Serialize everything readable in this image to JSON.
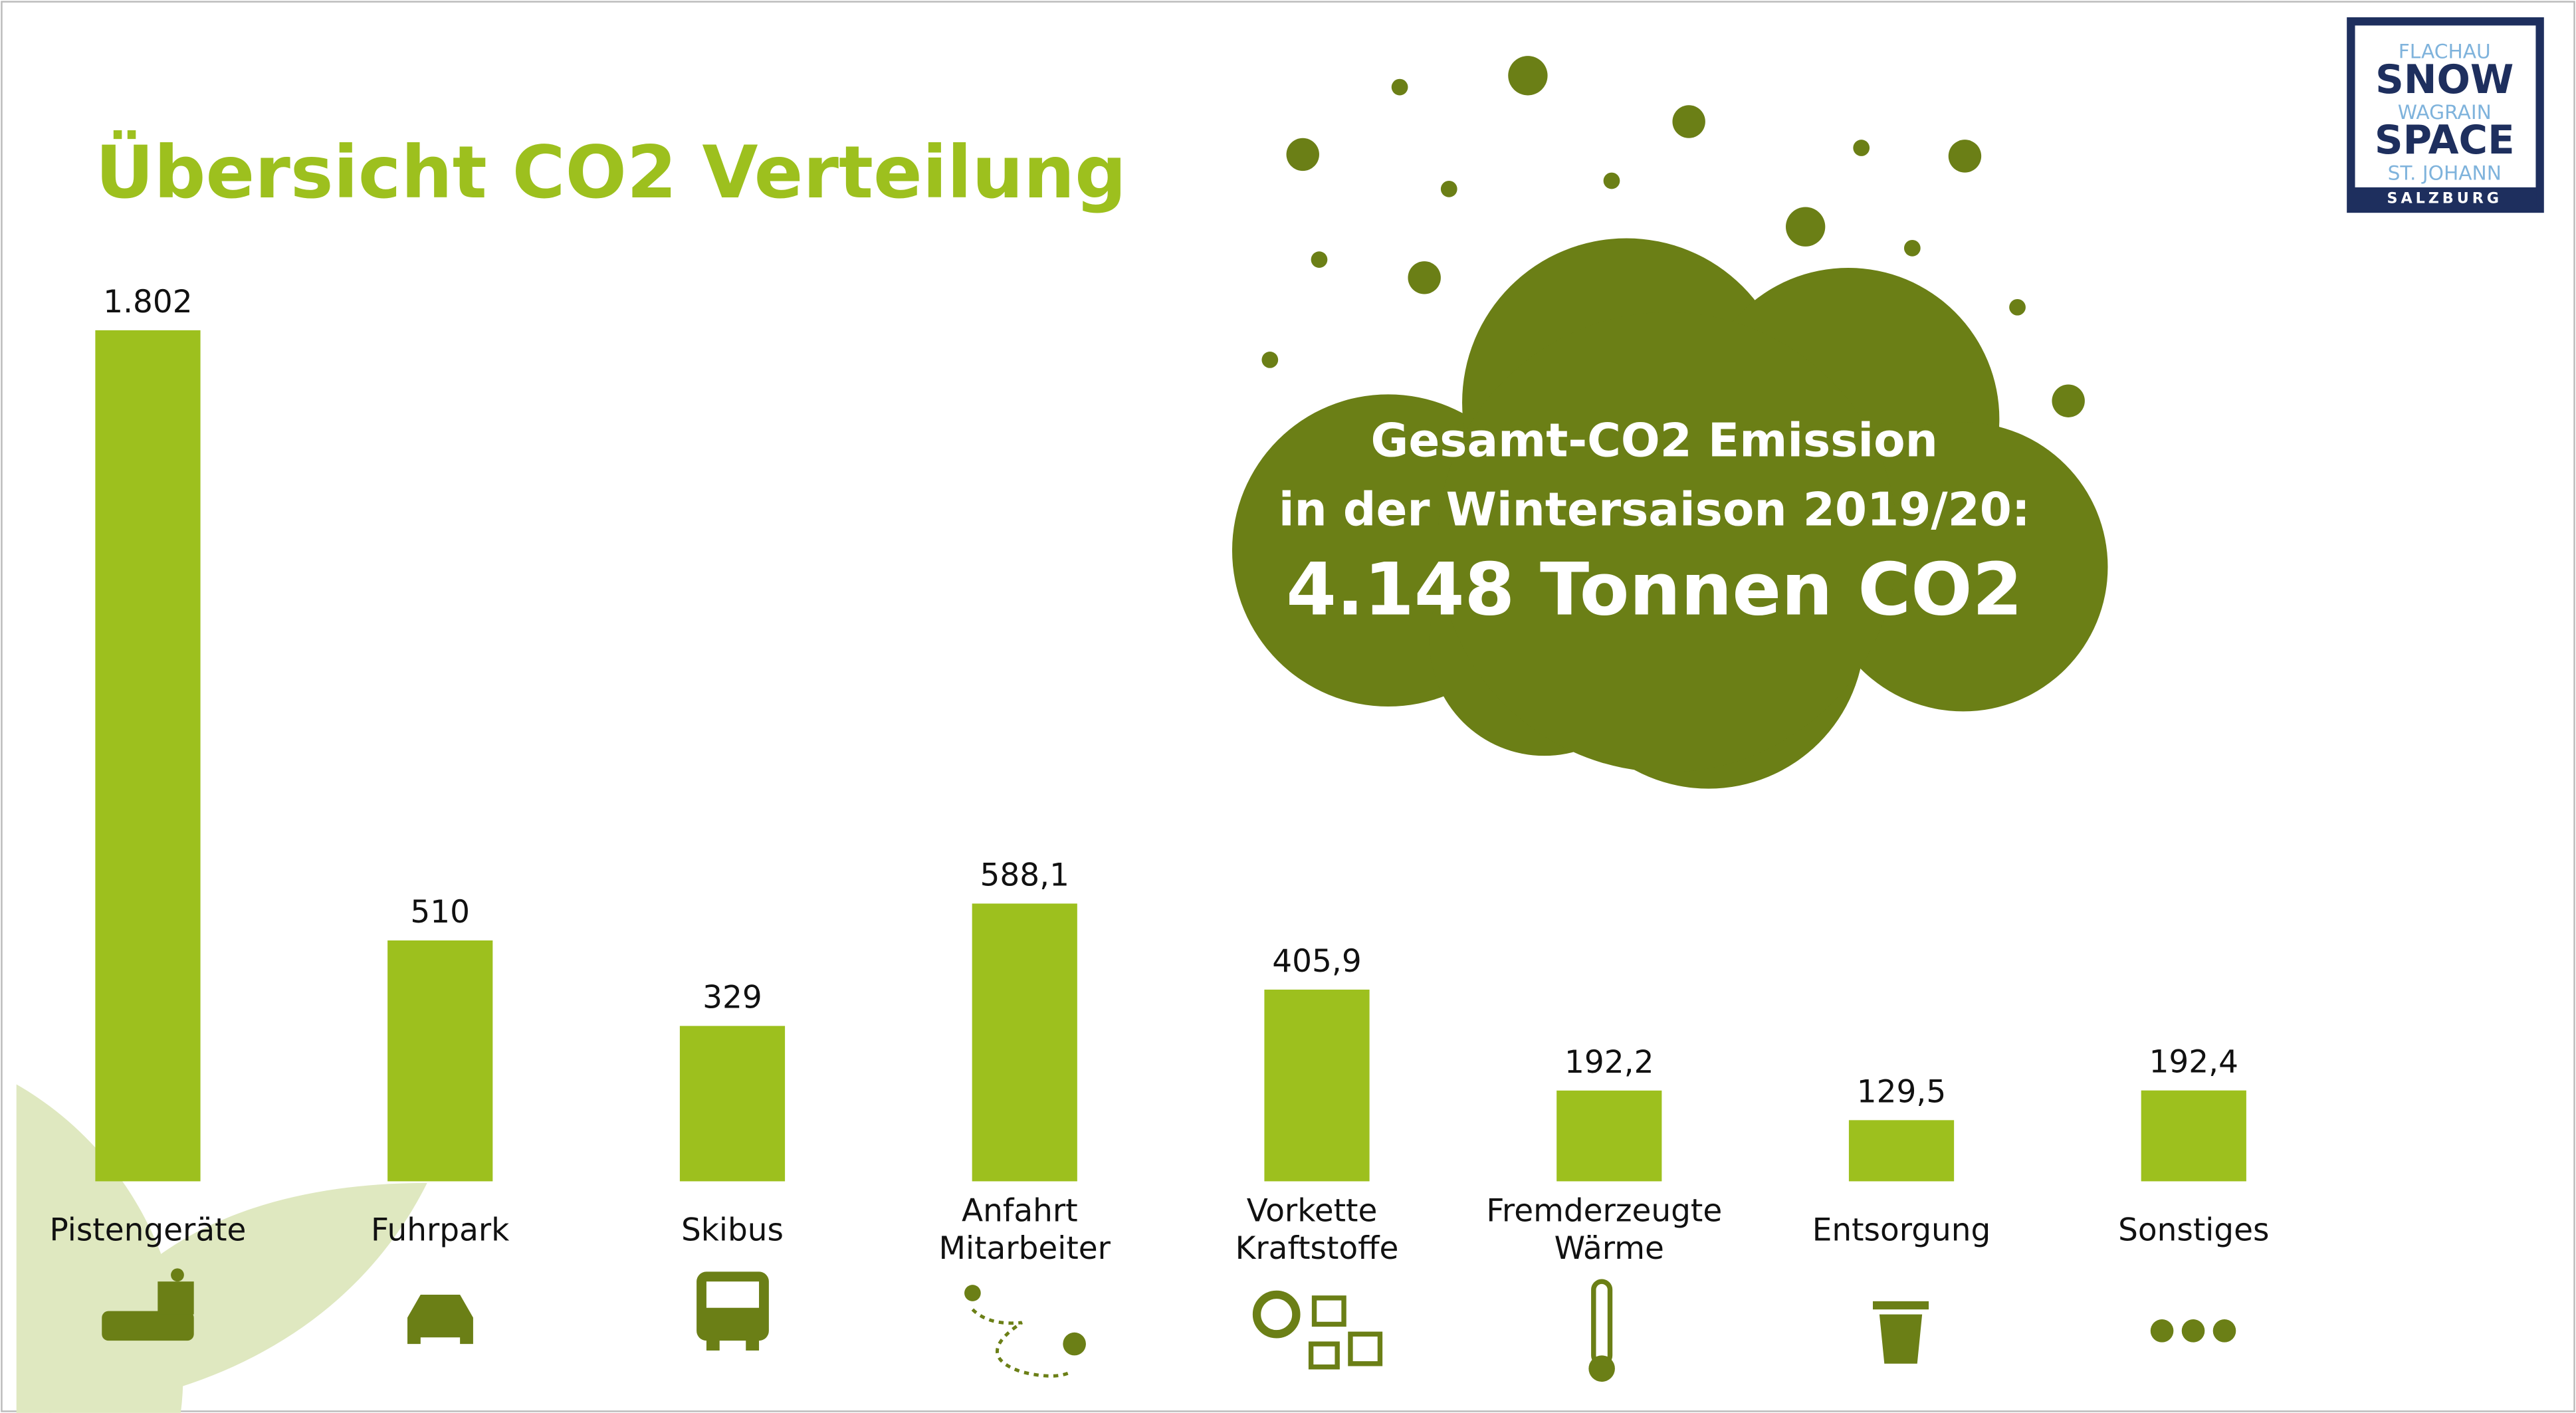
{
  "chart_data": {
    "type": "bar",
    "title": "Übersicht CO2 Verteilung",
    "categories": [
      "Pistengeräte",
      "Fuhrpark",
      "Skibus",
      "Anfahrt Mitarbeiter",
      "Vorkette Kraftstoffe",
      "Fremderzeugte Wärme",
      "Entsorgung",
      "Sonstiges"
    ],
    "values": [
      1802,
      510,
      329,
      588.1,
      405.9,
      192.2,
      129.5,
      192.4
    ],
    "value_labels": [
      "1.802",
      "510",
      "329",
      "588,1",
      "405,9",
      "192,2",
      "129,5",
      "192,4"
    ],
    "color": "#9dc01e"
  },
  "callout": {
    "lines": [
      "Gesamt-CO2 Emission",
      "in der Wintersaison 2019/20:",
      "4.148 Tonnen CO2"
    ]
  },
  "logo": {
    "lines": [
      "FLACHAU",
      "SNOW",
      "WAGRAIN",
      "SPACE",
      "ST. JOHANN",
      "SALZBURG"
    ]
  }
}
